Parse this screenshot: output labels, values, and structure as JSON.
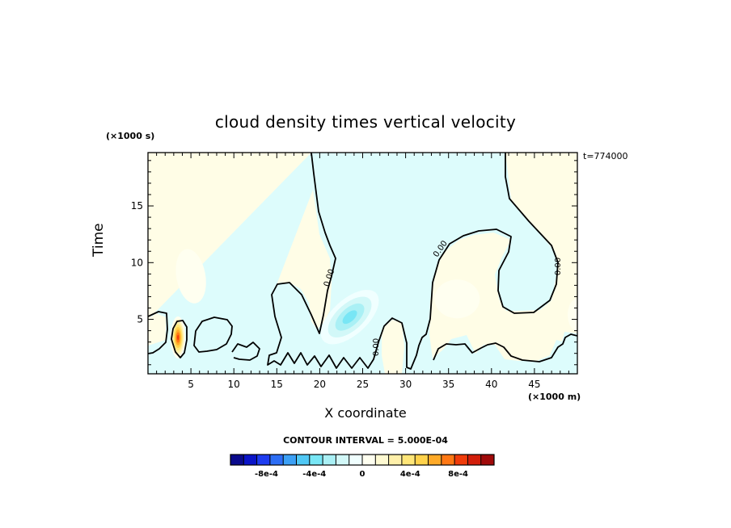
{
  "chart_data": {
    "type": "heatmap",
    "title": "cloud density times vertical velocity",
    "xlabel": "X coordinate",
    "ylabel": "Time",
    "x_unit_label": "(×1000 m)",
    "y_unit_label": "(×1000 s)",
    "timestamp": "t=774000",
    "xlim": [
      0,
      50
    ],
    "ylim": [
      0.2,
      19.7
    ],
    "x_ticks": [
      5,
      10,
      15,
      20,
      25,
      30,
      35,
      40,
      45
    ],
    "y_ticks": [
      5,
      10,
      15
    ],
    "zero_contour_labels": [
      "0.00",
      "0.00",
      "0.00",
      "0.00"
    ],
    "contour_interval_text": "CONTOUR INTERVAL = 5.000E-04",
    "colorbar": {
      "range": [
        -0.0011,
        0.0011
      ],
      "tick_values": [
        -0.0008,
        -0.0004,
        0,
        0.0004,
        0.0008
      ],
      "tick_labels": [
        "-8e-4",
        "-4e-4",
        "0",
        "4e-4",
        "8e-4"
      ],
      "colors": [
        "#0a0a8c",
        "#0a14c8",
        "#1e3cf0",
        "#2d6ef5",
        "#3ca0f5",
        "#50c8f5",
        "#78e6f5",
        "#aaf0f5",
        "#d2f8f8",
        "#f0ffff",
        "#fffff0",
        "#fffad2",
        "#fff0aa",
        "#ffe678",
        "#ffd24b",
        "#ffaa28",
        "#ff7814",
        "#f03c0a",
        "#d21e0a",
        "#a00a0a"
      ]
    },
    "features": [
      {
        "name": "positive core",
        "x": 3.5,
        "y": 3.4,
        "value": 0.0009
      },
      {
        "name": "positive plume",
        "x": 5,
        "y": 8.8,
        "value": 0.00015
      },
      {
        "name": "negative core",
        "x": 23.5,
        "y": 5.2,
        "value": -0.0004
      },
      {
        "name": "positive blob",
        "x": 36,
        "y": 6.8,
        "value": 0.00015
      },
      {
        "name": "positive edge",
        "x": 50,
        "y": 5.4,
        "value": 0.0001
      }
    ]
  }
}
